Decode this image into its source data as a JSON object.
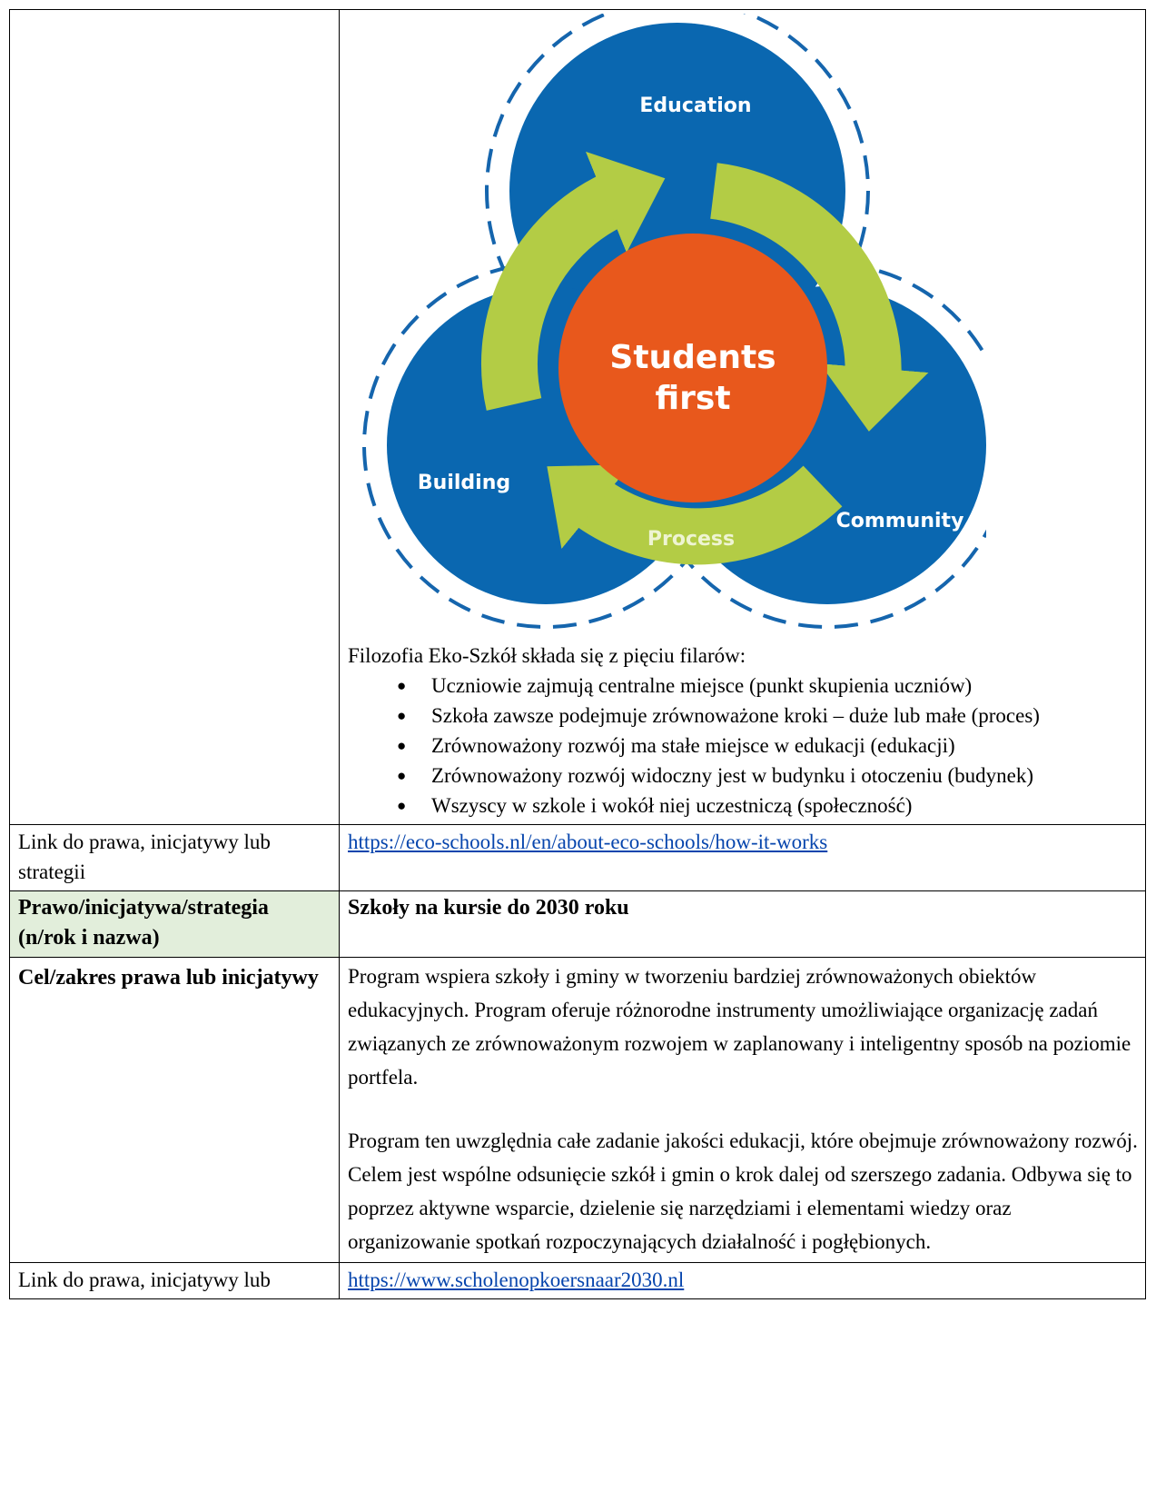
{
  "diagram": {
    "labels": {
      "education": "Education",
      "building": "Building",
      "community": "Community",
      "process": "Process",
      "center": [
        "Students",
        "first"
      ]
    }
  },
  "rows": [
    {
      "intro": "Filozofia Eko-Szkół składa się z pięciu filarów:",
      "bullets": [
        "Uczniowie zajmują centralne miejsce (punkt skupienia uczniów)",
        "Szkoła zawsze podejmuje zrównoważone kroki – duże lub małe (proces)",
        "Zrównoważony rozwój ma stałe miejsce w edukacji (edukacji)",
        "Zrównoważony rozwój widoczny jest w budynku i otoczeniu (budynek)",
        "Wszyscy w szkole i wokół niej uczestniczą (społeczność)"
      ]
    },
    {
      "label": "Link do prawa, inicjatywy lub strategii",
      "link": "https://eco-schools.nl/en/about-eco-schools/how-it-works"
    },
    {
      "label": "Prawo/inicjatywa/strategia (n/rok i nazwa)",
      "title": "Szkoły na kursie do 2030 roku"
    },
    {
      "label": "Cel/zakres prawa lub inicjatywy",
      "paragraphs": [
        "Program wspiera szkoły i gminy w tworzeniu bardziej zrównoważonych obiektów edukacyjnych. Program oferuje różnorodne instrumenty umożliwiające organizację zadań związanych ze zrównoważonym rozwojem w zaplanowany i inteligentny sposób na poziomie portfela.",
        "Program ten uwzględnia całe zadanie jakości edukacji, które obejmuje zrównoważony rozwój. Celem jest wspólne odsunięcie szkół i gmin o krok dalej od szerszego zadania. Odbywa się to poprzez aktywne wsparcie, dzielenie się narzędziami i elementami wiedzy oraz organizowanie spotkań rozpoczynających działalność i pogłębionych."
      ]
    },
    {
      "label": "Link do prawa, inicjatywy lub",
      "link": "https://www.scholenopkoersnaar2030.nl"
    }
  ]
}
